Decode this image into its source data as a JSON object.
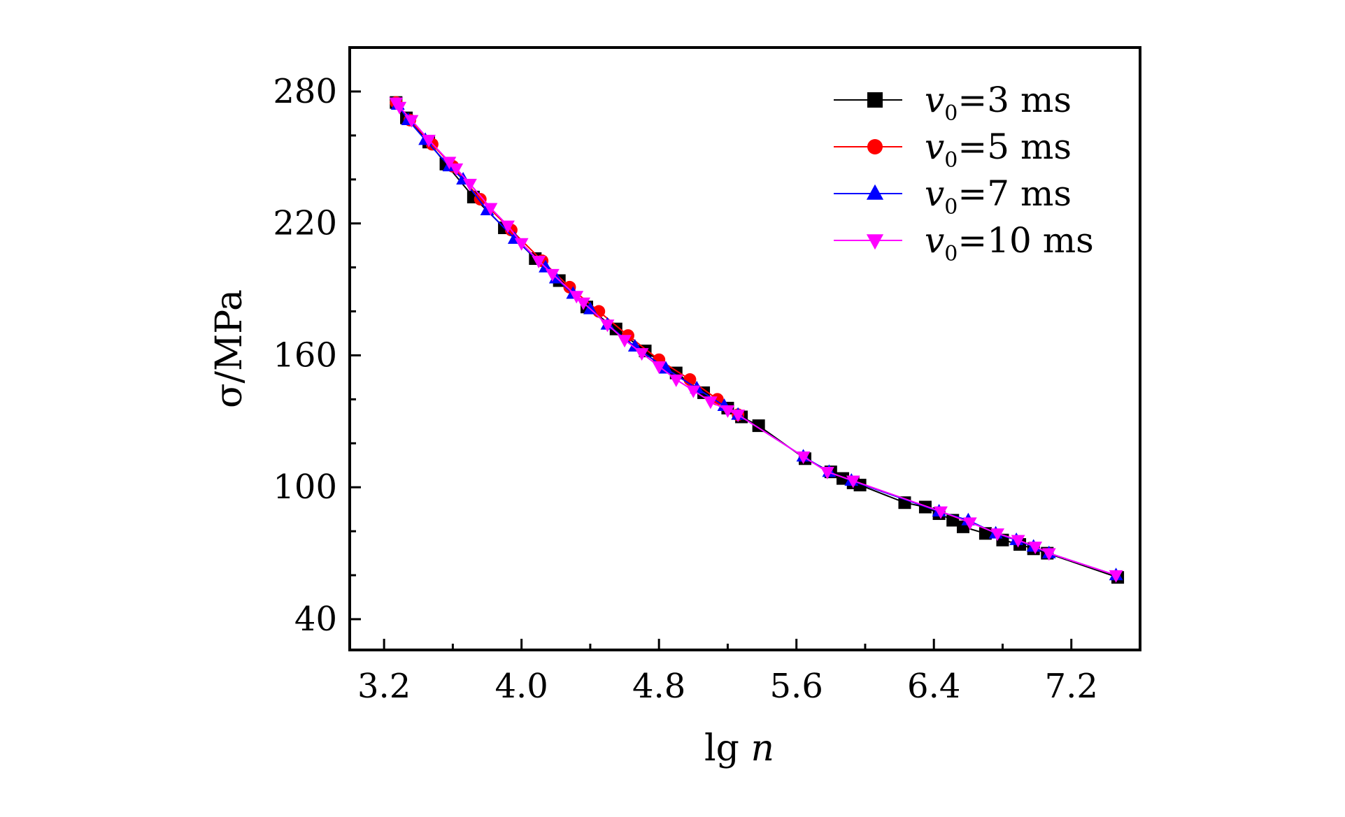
{
  "chart_data": {
    "type": "line",
    "title": "",
    "xlabel": {
      "main": "lg ",
      "italic": "n"
    },
    "ylabel": "σ/MPa",
    "xlim": [
      3.0,
      7.6
    ],
    "ylim": [
      26,
      300
    ],
    "xticks": [
      3.2,
      4.0,
      4.8,
      5.6,
      6.4,
      7.2
    ],
    "xtick_labels": [
      "3.2",
      "4.0",
      "4.8",
      "5.6",
      "6.4",
      "7.2"
    ],
    "yticks": [
      40,
      100,
      160,
      220,
      280
    ],
    "ytick_labels": [
      "40",
      "100",
      "160",
      "220",
      "280"
    ],
    "grid": false,
    "legend_position": "top-right",
    "series": [
      {
        "name": "v0=3 ms",
        "legend": {
          "var": "v",
          "sub": "0",
          "rest": "=3 ms"
        },
        "color": "#000000",
        "marker": "square",
        "x": [
          3.27,
          3.33,
          3.46,
          3.56,
          3.72,
          3.9,
          4.08,
          4.22,
          4.38,
          4.55,
          4.72,
          4.9,
          5.06,
          5.2,
          5.28,
          5.38,
          5.65,
          5.8,
          5.87,
          5.93,
          5.97,
          6.23,
          6.35,
          6.43,
          6.51,
          6.57,
          6.7,
          6.8,
          6.9,
          6.98,
          7.06,
          7.47
        ],
        "y": [
          275,
          268,
          257,
          247,
          232,
          218,
          204,
          194,
          182,
          172,
          162,
          152,
          143,
          136,
          132,
          128,
          113,
          107,
          104,
          102,
          101,
          93,
          91,
          88,
          85,
          82,
          79,
          76,
          74,
          72,
          70,
          59
        ]
      },
      {
        "name": "v0=5 ms",
        "legend": {
          "var": "v",
          "sub": "0",
          "rest": "=5 ms"
        },
        "color": "#ff0000",
        "marker": "circle",
        "x": [
          3.27,
          3.35,
          3.48,
          3.6,
          3.76,
          3.94,
          4.12,
          4.28,
          4.45,
          4.62,
          4.8,
          4.98,
          5.14,
          5.26
        ],
        "y": [
          275,
          267,
          256,
          246,
          231,
          217,
          203,
          191,
          180,
          169,
          158,
          149,
          140,
          133
        ]
      },
      {
        "name": "v0=7 ms",
        "legend": {
          "var": "v",
          "sub": "0",
          "rest": "=7 ms"
        },
        "color": "#0000ff",
        "marker": "triangle-up",
        "x": [
          3.28,
          3.34,
          3.44,
          3.58,
          3.66,
          3.8,
          3.96,
          4.14,
          4.2,
          4.3,
          4.4,
          4.5,
          4.66,
          4.84,
          5.02,
          5.18,
          5.26,
          5.64,
          5.79,
          5.92,
          6.43,
          6.6,
          6.76,
          6.88,
          6.98,
          7.07,
          7.46
        ],
        "y": [
          274,
          267,
          258,
          246,
          240,
          226,
          213,
          200,
          195,
          188,
          181,
          174,
          164,
          154,
          145,
          137,
          133,
          114,
          107,
          103,
          89,
          85,
          79,
          76,
          73,
          70,
          60
        ]
      },
      {
        "name": "v0=10 ms",
        "legend": {
          "var": "v",
          "sub": "0",
          "rest": "=10 ms"
        },
        "color": "#ff00ff",
        "marker": "triangle-down",
        "x": [
          3.27,
          3.29,
          3.36,
          3.46,
          3.58,
          3.62,
          3.7,
          3.82,
          3.92,
          4.0,
          4.1,
          4.18,
          4.32,
          4.36,
          4.5,
          4.6,
          4.7,
          4.8,
          4.9,
          5.0,
          5.1,
          5.2,
          5.26,
          5.64,
          5.78,
          5.93,
          6.44,
          6.61,
          6.77,
          6.89,
          6.99,
          7.07,
          7.46
        ],
        "y": [
          275,
          273,
          267,
          258,
          248,
          245,
          238,
          227,
          219,
          211,
          203,
          197,
          187,
          184,
          174,
          167,
          161,
          155,
          149,
          144,
          139,
          135,
          133,
          114,
          107,
          103,
          89,
          84,
          79,
          76,
          73,
          70,
          60
        ]
      }
    ]
  }
}
